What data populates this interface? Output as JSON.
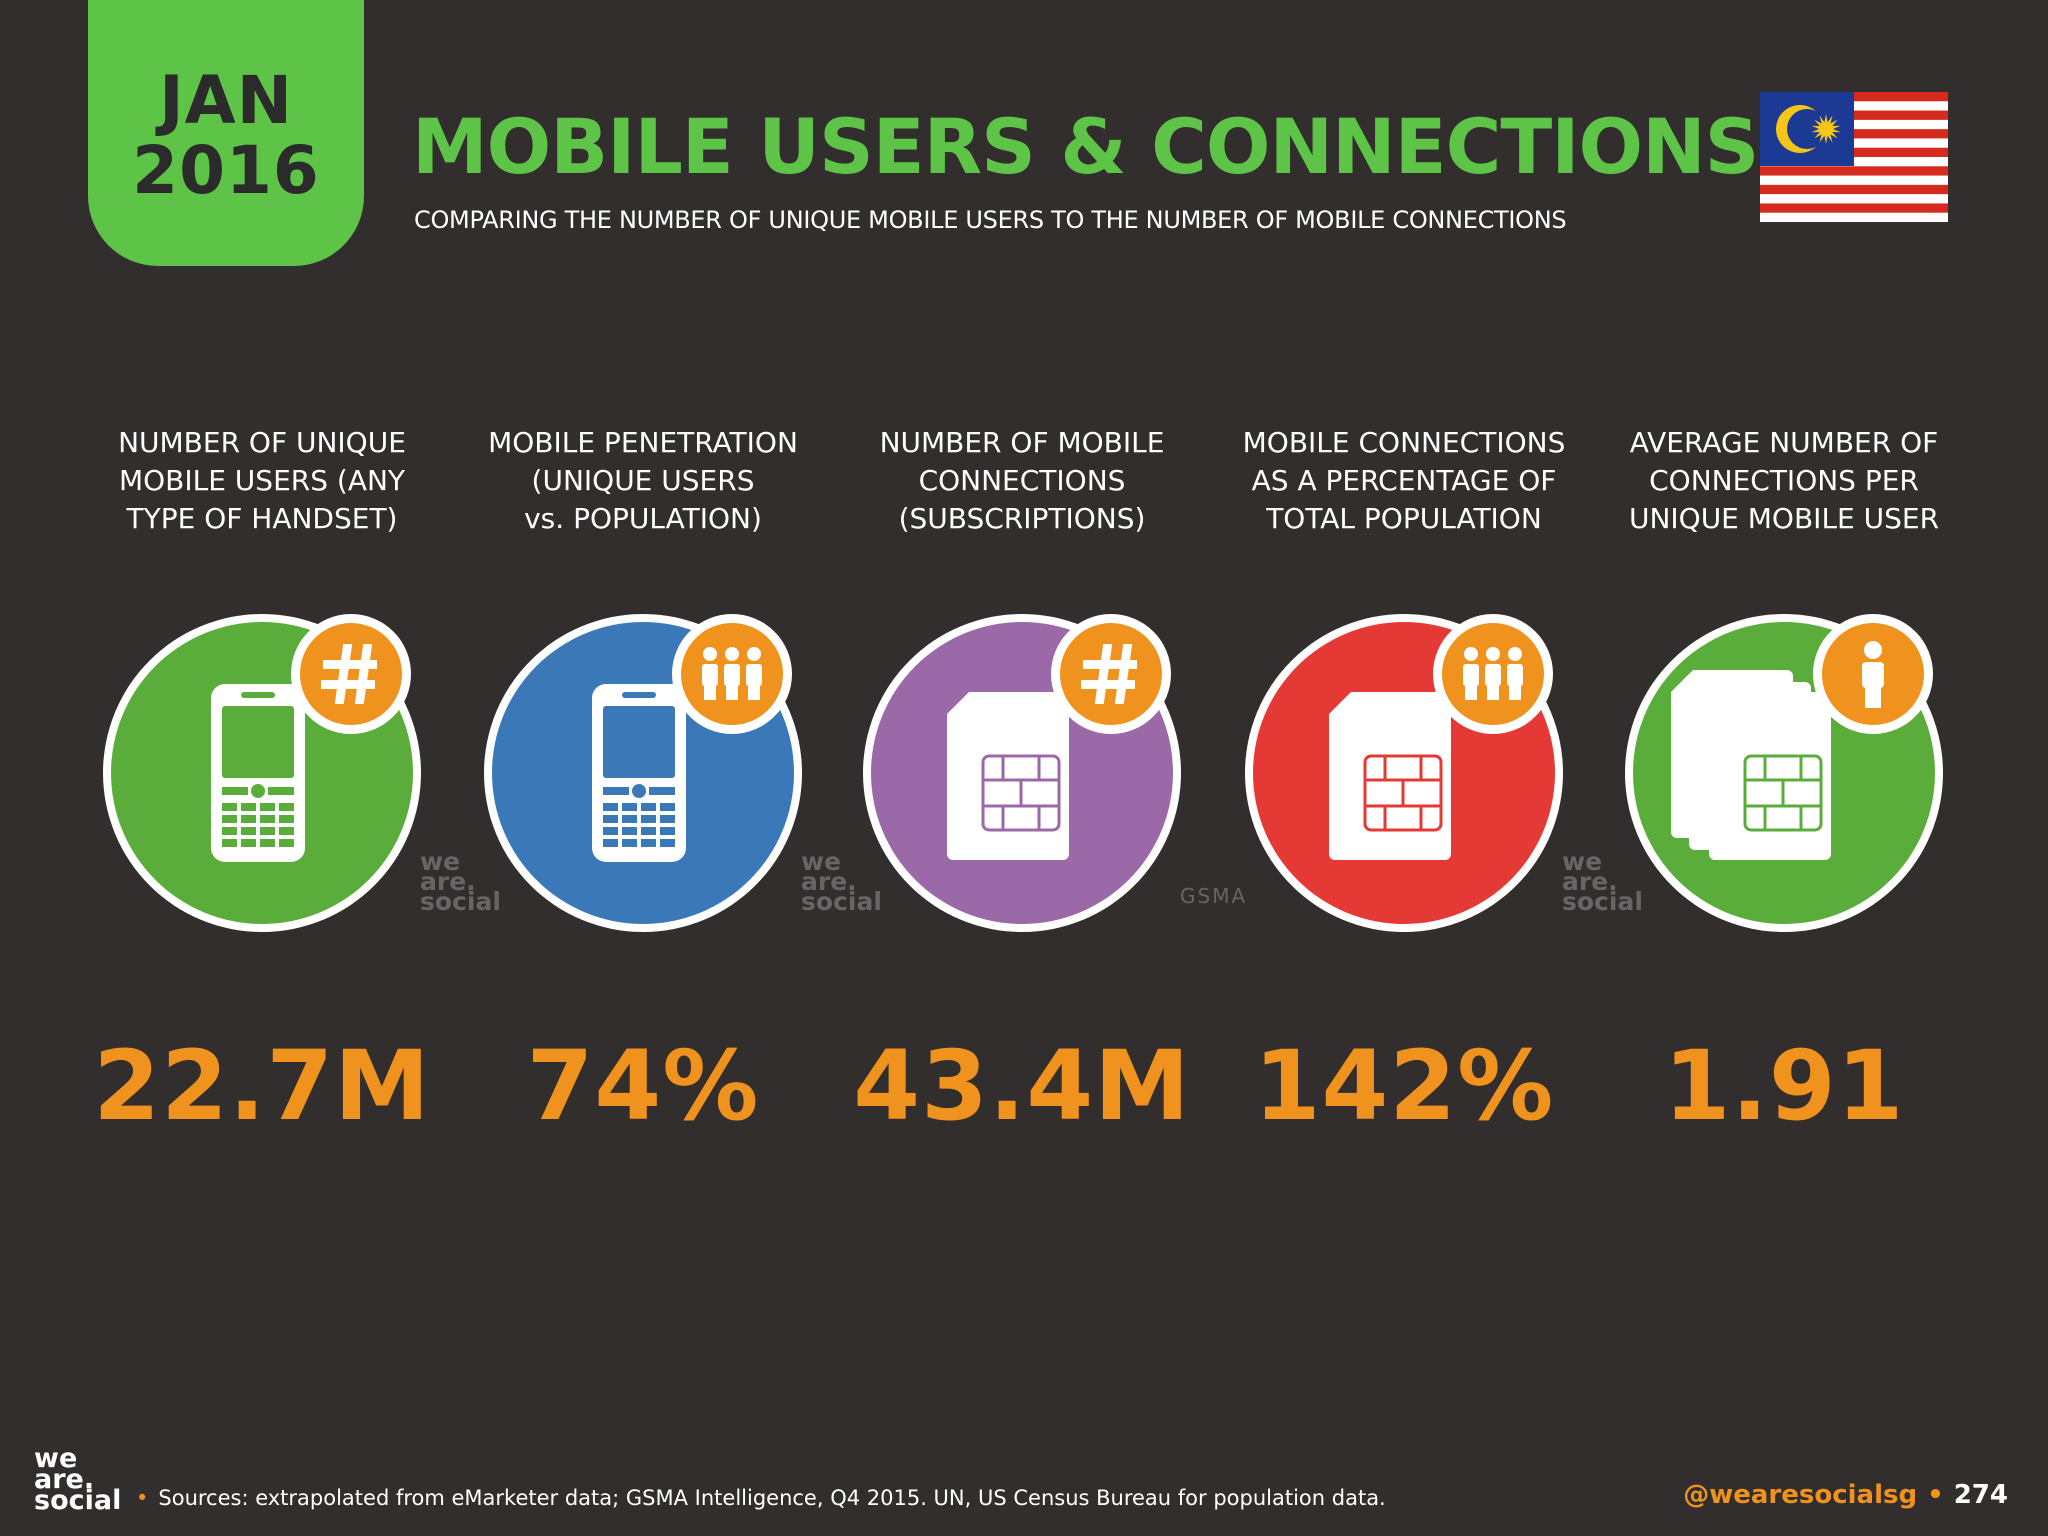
{
  "header": {
    "month": "JAN",
    "year": "2016",
    "title": "MOBILE USERS & CONNECTIONS",
    "subtitle": "COMPARING THE NUMBER OF UNIQUE MOBILE USERS TO THE NUMBER OF MOBILE CONNECTIONS"
  },
  "flag_icon": "malaysia-flag",
  "stats": [
    {
      "label_lines": [
        "NUMBER OF UNIQUE",
        "MOBILE USERS (ANY",
        "TYPE OF HANDSET)"
      ],
      "value": "22.7M",
      "circle_color": "#5aad3b",
      "main_icon": "mobile-phone-icon",
      "badge_icon": "hash-icon",
      "source_mark": [
        "we",
        "are.",
        "social"
      ]
    },
    {
      "label_lines": [
        "MOBILE PENETRATION",
        "(UNIQUE USERS",
        "vs. POPULATION)"
      ],
      "value": "74%",
      "circle_color": "#3a78b8",
      "main_icon": "mobile-phone-icon",
      "badge_icon": "people-icon",
      "source_mark": [
        "we",
        "are.",
        "social"
      ]
    },
    {
      "label_lines": [
        "NUMBER OF MOBILE",
        "CONNECTIONS",
        "(SUBSCRIPTIONS)"
      ],
      "value": "43.4M",
      "circle_color": "#9b69a8",
      "main_icon": "sim-card-icon",
      "badge_icon": "hash-icon",
      "source_mark": [
        "GSMA"
      ]
    },
    {
      "label_lines": [
        "MOBILE CONNECTIONS",
        "AS A PERCENTAGE OF",
        "TOTAL POPULATION"
      ],
      "value": "142%",
      "circle_color": "#e53935",
      "main_icon": "sim-card-icon",
      "badge_icon": "people-icon",
      "source_mark": [
        "we",
        "are.",
        "social"
      ]
    },
    {
      "label_lines": [
        "AVERAGE NUMBER OF",
        "CONNECTIONS PER",
        "UNIQUE MOBILE USER"
      ],
      "value": "1.91",
      "circle_color": "#5aad3b",
      "main_icon": "sim-cards-stack-icon",
      "badge_icon": "person-icon",
      "source_mark": []
    }
  ],
  "footer": {
    "logo_lines": [
      "we",
      "are.",
      "social"
    ],
    "sources": "Sources: extrapolated from eMarketer data; GSMA Intelligence, Q4 2015. UN, US Census Bureau for population data.",
    "handle": "@wearesocialsg",
    "page": "274"
  },
  "colors": {
    "green": "#5ec447",
    "orange": "#f0921e",
    "background": "#322e2d"
  }
}
